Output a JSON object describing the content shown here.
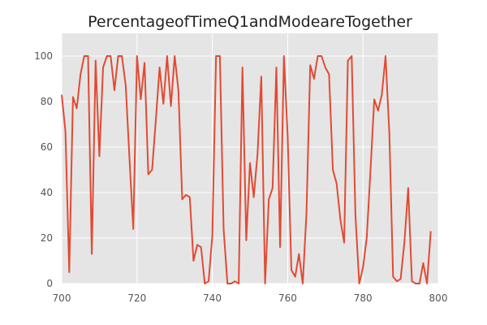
{
  "chart_data": {
    "type": "line",
    "title": "PercentageofTimeQ1andModeareTogether",
    "xlabel": "",
    "ylabel": "",
    "xlim": [
      700,
      800
    ],
    "ylim": [
      0,
      110
    ],
    "xticks": [
      700,
      720,
      740,
      760,
      780,
      800
    ],
    "yticks": [
      0,
      20,
      40,
      60,
      80,
      100
    ],
    "grid": true,
    "style": "ggplot",
    "colors": {
      "line": "#E24A33",
      "plot_bg": "#E5E5E5",
      "grid": "#FFFFFF",
      "tick_text": "#555555"
    },
    "series": [
      {
        "x": [
          700,
          701,
          702,
          703,
          704,
          705,
          706,
          707,
          708,
          709,
          710,
          711,
          712,
          713,
          714,
          715,
          716,
          717,
          718,
          719,
          720,
          721,
          722,
          723,
          724,
          725,
          726,
          727,
          728,
          729,
          730,
          731,
          732,
          733,
          734,
          735,
          736,
          737,
          738,
          739,
          740,
          741,
          742,
          743,
          744,
          745,
          746,
          747,
          748,
          749,
          750,
          751,
          752,
          753,
          754,
          755,
          756,
          757,
          758,
          759,
          760,
          761,
          762,
          763,
          764,
          765,
          766,
          767,
          768,
          769,
          770,
          771,
          772,
          773,
          774,
          775,
          776,
          777,
          778,
          779,
          780,
          781,
          782,
          783,
          784,
          785,
          786,
          787,
          788,
          789,
          790,
          791,
          792,
          793,
          794,
          795,
          796,
          797,
          798
        ],
        "y": [
          83,
          67,
          5,
          82,
          77,
          92,
          100,
          100,
          13,
          98,
          56,
          95,
          100,
          100,
          85,
          100,
          100,
          87,
          55,
          24,
          100,
          81,
          97,
          48,
          50,
          72,
          95,
          79,
          100,
          78,
          100,
          85,
          37,
          39,
          38,
          10,
          17,
          16,
          0,
          1,
          21,
          100,
          100,
          24,
          0,
          0,
          1,
          0,
          95,
          19,
          53,
          38,
          57,
          91,
          0,
          37,
          42,
          95,
          16,
          100,
          65,
          6,
          3,
          13,
          0,
          31,
          96,
          90,
          100,
          100,
          95,
          92,
          50,
          44,
          28,
          18,
          98,
          100,
          30,
          0,
          7,
          20,
          50,
          81,
          76,
          83,
          100,
          66,
          3,
          1,
          2,
          18,
          42,
          1,
          0,
          0,
          9,
          0,
          23
        ]
      }
    ]
  }
}
